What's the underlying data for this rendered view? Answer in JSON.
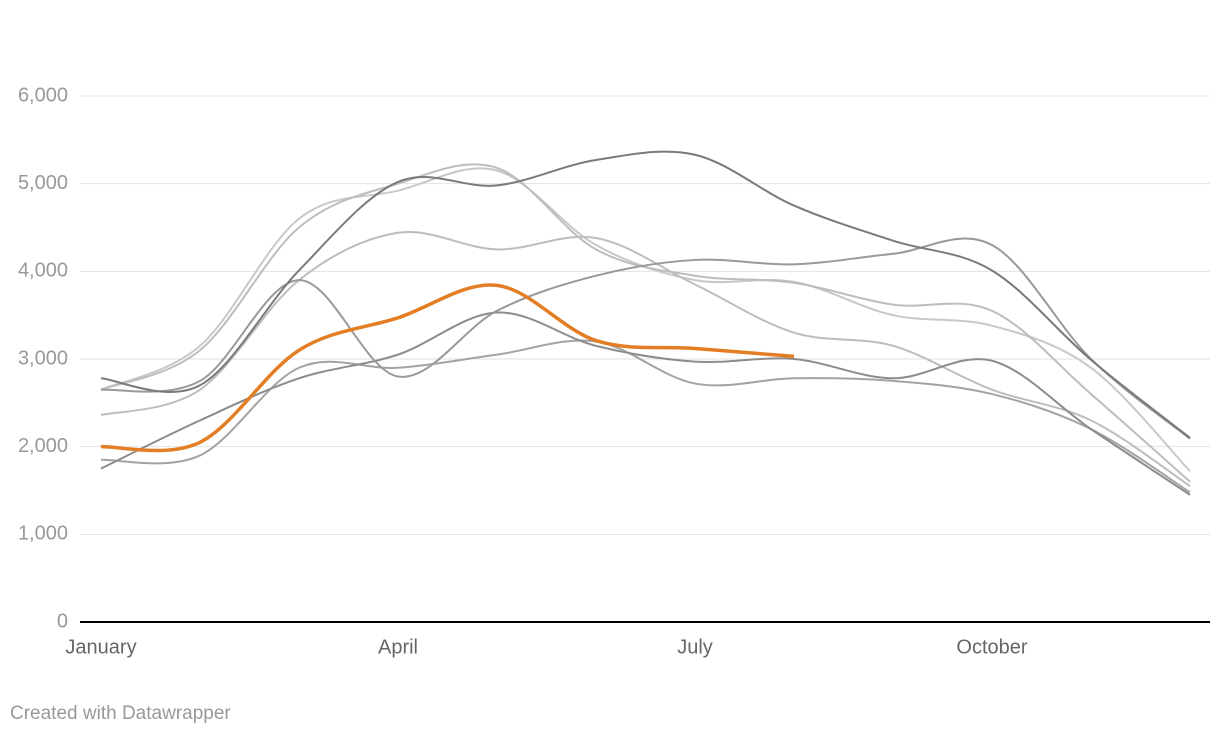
{
  "chart_data": {
    "type": "line",
    "categories": [
      "January",
      null,
      null,
      "April",
      null,
      null,
      "July",
      null,
      null,
      "October",
      null,
      null
    ],
    "series": [
      {
        "color": "#c8c8c8",
        "values": [
          2650,
          3150,
          4600,
          4920,
          5150,
          4300,
          3900,
          3880,
          3500,
          3380,
          2900,
          1720
        ]
      },
      {
        "color": "#bdbdbd",
        "values": [
          2650,
          3100,
          4500,
          5000,
          5180,
          4250,
          3950,
          3870,
          3620,
          3550,
          2600,
          1600
        ]
      },
      {
        "color": "#bdbdbd",
        "values": [
          2360,
          2650,
          3900,
          4440,
          4250,
          4380,
          3850,
          3300,
          3150,
          2650,
          2300,
          1550
        ]
      },
      {
        "color": "#a3a3a3",
        "values": [
          1850,
          1900,
          2900,
          2900,
          3050,
          3200,
          2720,
          2780,
          2750,
          2600,
          2200,
          1480
        ]
      },
      {
        "color": "#8c8c8c",
        "values": [
          1750,
          2300,
          2780,
          3050,
          3530,
          3150,
          2970,
          3000,
          2780,
          2980,
          2200,
          1450
        ]
      },
      {
        "color": "#999999",
        "values": [
          2650,
          2750,
          3900,
          2800,
          3550,
          3950,
          4130,
          4080,
          4200,
          4300,
          3000,
          2090
        ]
      },
      {
        "color": "#7a7a7a",
        "values": [
          2780,
          2700,
          4010,
          5020,
          4980,
          5270,
          5330,
          4750,
          4350,
          4010,
          2990,
          2100
        ]
      },
      {
        "color": "#e37e24",
        "values": [
          2000,
          2050,
          3100,
          3470,
          3840,
          3210,
          3120,
          3030,
          null,
          null,
          null,
          null
        ]
      }
    ],
    "ylim": [
      0,
      6000
    ],
    "yticks": [
      0,
      {
        "value": 1000,
        "label": "1,000"
      },
      {
        "value": 2000,
        "label": "2,000"
      },
      {
        "value": 3000,
        "label": "3,000"
      },
      {
        "value": 4000,
        "label": "4,000"
      },
      {
        "value": 5000,
        "label": "5,000"
      },
      {
        "value": 6000,
        "label": "6,000"
      }
    ],
    "grid": true,
    "credit": "Created with Datawrapper"
  }
}
